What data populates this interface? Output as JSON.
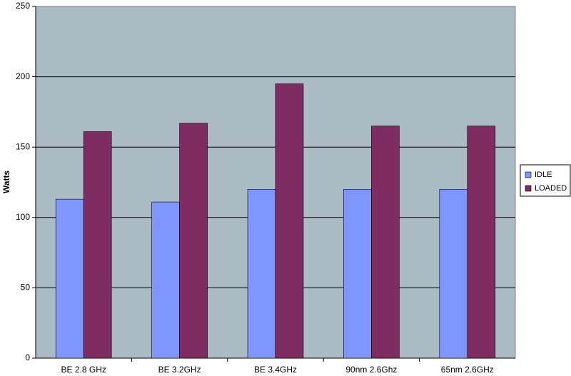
{
  "chart_data": {
    "type": "bar",
    "y_label": "Watts",
    "categories": [
      "BE 2.8 GHz",
      "BE 3.2GHz",
      "BE 3.4GHz",
      "90nm 2.6Ghz",
      "65nm 2.6GHz"
    ],
    "series": [
      {
        "name": "IDLE",
        "color": "#8096ff",
        "values": [
          113,
          111,
          120,
          120,
          120
        ]
      },
      {
        "name": "LOADED",
        "color": "#7f2c63",
        "values": [
          161,
          167,
          195,
          165,
          165
        ]
      }
    ],
    "ylim": [
      0,
      250
    ],
    "yticks": [
      0,
      50,
      100,
      150,
      200,
      250
    ],
    "grid": true,
    "legend": "right"
  }
}
